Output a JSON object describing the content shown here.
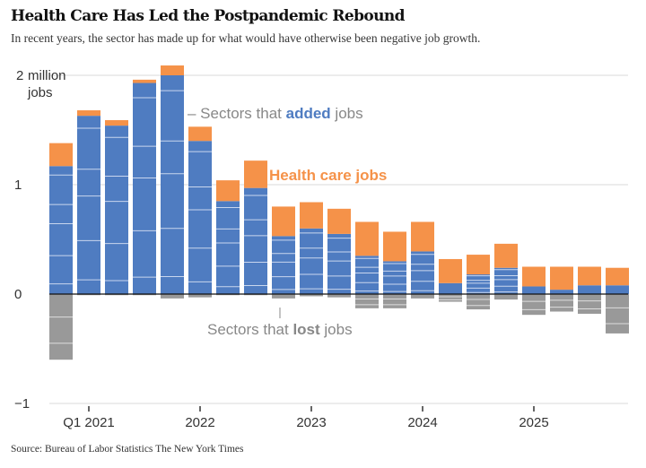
{
  "title": "Health Care Has Led the Postpandemic Rebound",
  "subtitle": "In recent years, the sector has made up for what would have otherwise been negative job growth.",
  "source": "Source: Bureau of Labor Statistics  The New York Times",
  "colors": {
    "added": "#4f7cc1",
    "health": "#f59249",
    "lost": "#999999"
  },
  "chart_data": {
    "type": "bar",
    "stacked": true,
    "title": "Health Care Has Led the Postpandemic Rebound",
    "ylabel": "million jobs",
    "ylim": [
      -1,
      2
    ],
    "yticks": [
      {
        "v": 2,
        "label": "2",
        "unit": "million",
        "unit2": "jobs"
      },
      {
        "v": 1,
        "label": "1"
      },
      {
        "v": 0,
        "label": "0"
      },
      {
        "v": -1,
        "label": "−1"
      }
    ],
    "xticks": [
      {
        "index": 1,
        "label": "Q1 2021"
      },
      {
        "index": 5,
        "label": "2022"
      },
      {
        "index": 9,
        "label": "2023"
      },
      {
        "index": 13,
        "label": "2024"
      },
      {
        "index": 17,
        "label": "2025"
      }
    ],
    "categories": [
      "Q4 2020",
      "Q1 2021",
      "Q2 2021",
      "Q3 2021",
      "Q4 2021",
      "Q1 2022",
      "Q2 2022",
      "Q3 2022",
      "Q4 2022",
      "Q1 2023",
      "Q2 2023",
      "Q3 2023",
      "Q4 2023",
      "Q1 2024",
      "Q2 2024",
      "Q3 2024",
      "Q4 2024",
      "Q1 2025",
      "Q2 2025",
      "Q3 2025",
      "Q4 2025"
    ],
    "series": [
      {
        "name": "Sectors that added jobs",
        "values": [
          1.17,
          1.63,
          1.54,
          1.93,
          2.0,
          1.4,
          0.85,
          0.97,
          0.53,
          0.6,
          0.55,
          0.35,
          0.3,
          0.39,
          0.1,
          0.18,
          0.24,
          0.07,
          0.04,
          0.08,
          0.08
        ]
      },
      {
        "name": "Health care jobs",
        "values": [
          0.21,
          0.05,
          0.05,
          0.03,
          0.09,
          0.13,
          0.19,
          0.25,
          0.27,
          0.24,
          0.23,
          0.31,
          0.27,
          0.27,
          0.22,
          0.18,
          0.22,
          0.18,
          0.21,
          0.17,
          0.16
        ]
      },
      {
        "name": "Sectors that lost jobs",
        "values": [
          -0.6,
          -0.01,
          -0.01,
          -0.01,
          -0.04,
          -0.03,
          -0.01,
          -0.01,
          -0.04,
          -0.02,
          -0.03,
          -0.13,
          -0.13,
          -0.04,
          -0.07,
          -0.14,
          -0.05,
          -0.19,
          -0.16,
          -0.18,
          -0.36
        ]
      }
    ],
    "annotations": {
      "added_prefix": "– Sectors that ",
      "added_bold": "added",
      "added_suffix": " jobs",
      "health": "Health care jobs",
      "lost_prefix": "Sectors that ",
      "lost_bold": "lost",
      "lost_suffix": " jobs"
    },
    "grid": true
  }
}
